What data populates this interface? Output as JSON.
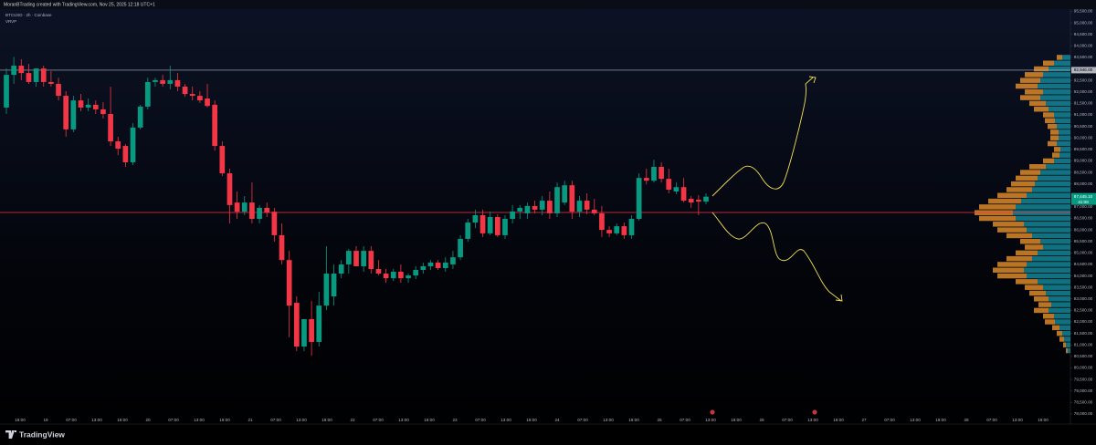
{
  "header": {
    "text": "MoranBTrading created with TradingView.com, Nov 25, 2025 12:18 UTC+1"
  },
  "chart_data": {
    "type": "candlestick",
    "symbol": "BTCUSD · 2h · Coinbase",
    "indicator": "VRVP",
    "up_color": "#089981",
    "down_color": "#f23645",
    "ylim": [
      77560,
      95500
    ],
    "yticks": [
      {
        "value": 95500,
        "label": "95,500.00"
      },
      {
        "value": 95000,
        "label": "95,000.00"
      },
      {
        "value": 94500,
        "label": "94,500.00"
      },
      {
        "value": 94000,
        "label": "94,000.00"
      },
      {
        "value": 93500,
        "label": "93,500.00"
      },
      {
        "value": 93000,
        "label": "93,000.00"
      },
      {
        "value": 92500,
        "label": "92,500.00"
      },
      {
        "value": 92000,
        "label": "92,000.00"
      },
      {
        "value": 91500,
        "label": "91,500.00"
      },
      {
        "value": 91000,
        "label": "91,000.00"
      },
      {
        "value": 90500,
        "label": "90,500.00"
      },
      {
        "value": 90000,
        "label": "90,000.00"
      },
      {
        "value": 89500,
        "label": "89,500.00"
      },
      {
        "value": 89000,
        "label": "89,000.00"
      },
      {
        "value": 88500,
        "label": "88,500.00"
      },
      {
        "value": 88000,
        "label": "88,000.00"
      },
      {
        "value": 87000,
        "label": "87,000.00"
      },
      {
        "value": 86500,
        "label": "86,500.00"
      },
      {
        "value": 86000,
        "label": "86,000.00"
      },
      {
        "value": 85500,
        "label": "85,500.00"
      },
      {
        "value": 85000,
        "label": "85,000.00"
      },
      {
        "value": 84500,
        "label": "84,500.00"
      },
      {
        "value": 84000,
        "label": "84,000.00"
      },
      {
        "value": 83500,
        "label": "83,500.00"
      },
      {
        "value": 83000,
        "label": "83,000.00"
      },
      {
        "value": 82500,
        "label": "82,500.00"
      },
      {
        "value": 82000,
        "label": "82,000.00"
      },
      {
        "value": 81500,
        "label": "81,500.00"
      },
      {
        "value": 81000,
        "label": "81,000.00"
      },
      {
        "value": 80500,
        "label": "80,500.00"
      },
      {
        "value": 80000,
        "label": "80,000.00"
      },
      {
        "value": 79500,
        "label": "79,500.00"
      },
      {
        "value": 79000,
        "label": "79,000.00"
      },
      {
        "value": 78500,
        "label": "78,500.00"
      },
      {
        "value": 78000,
        "label": "78,000.00"
      }
    ],
    "x_labels": [
      "19:00",
      "19",
      "07:00",
      "13:00",
      "19:00",
      "20",
      "07:00",
      "13:00",
      "19:00",
      "21",
      "07:00",
      "13:00",
      "19:00",
      "22",
      "07:00",
      "13:00",
      "19:00",
      "23",
      "07:00",
      "13:00",
      "19:00",
      "24",
      "07:00",
      "13:00",
      "19:00",
      "25",
      "07:00",
      "13:00",
      "19:00",
      "26",
      "07:00",
      "13:00",
      "19:00",
      "27",
      "07:00",
      "13:00",
      "19:00",
      "28",
      "07:00",
      "13:00",
      "19:00"
    ],
    "ohlc": [
      [
        91320,
        93020,
        91040,
        92740
      ],
      [
        92740,
        93520,
        92350,
        93140
      ],
      [
        93140,
        93420,
        92510,
        92820
      ],
      [
        92820,
        93220,
        92350,
        92430
      ],
      [
        92430,
        93020,
        92230,
        93020
      ],
      [
        93020,
        93140,
        92230,
        92430
      ],
      [
        92430,
        92900,
        92230,
        92350
      ],
      [
        92350,
        92620,
        91630,
        91830
      ],
      [
        91830,
        92030,
        90050,
        90370
      ],
      [
        90370,
        91830,
        90250,
        91630
      ],
      [
        91630,
        91910,
        91160,
        91320
      ],
      [
        91320,
        91710,
        91160,
        91440
      ],
      [
        91440,
        91630,
        91040,
        91240
      ],
      [
        91240,
        91550,
        90840,
        91040
      ],
      [
        91040,
        92230,
        89650,
        89850
      ],
      [
        89850,
        90050,
        89250,
        89530
      ],
      [
        89650,
        89730,
        88740,
        88940
      ],
      [
        88940,
        90640,
        88820,
        90450
      ],
      [
        90450,
        91440,
        90370,
        91360
      ],
      [
        91360,
        92620,
        91240,
        92430
      ],
      [
        92430,
        92620,
        92230,
        92510
      ],
      [
        92510,
        92740,
        92230,
        92350
      ],
      [
        92350,
        93140,
        92110,
        92510
      ],
      [
        92510,
        92820,
        92030,
        92230
      ],
      [
        92230,
        92350,
        91790,
        91910
      ],
      [
        91910,
        92230,
        91630,
        91830
      ],
      [
        91830,
        92030,
        91520,
        91630
      ],
      [
        91710,
        92350,
        91320,
        91390
      ],
      [
        91440,
        91630,
        89450,
        89650
      ],
      [
        89650,
        89850,
        88340,
        88460
      ],
      [
        88460,
        88660,
        86280,
        87080
      ],
      [
        87190,
        87670,
        86480,
        86790
      ],
      [
        86790,
        87470,
        86640,
        87190
      ],
      [
        87190,
        88060,
        86280,
        86480
      ],
      [
        86480,
        87080,
        86280,
        86960
      ],
      [
        86960,
        87190,
        86560,
        86760
      ],
      [
        86790,
        86960,
        85490,
        85770
      ],
      [
        85770,
        86280,
        84500,
        84690
      ],
      [
        84690,
        85090,
        81330,
        82710
      ],
      [
        82830,
        83110,
        80730,
        80930
      ],
      [
        80930,
        82120,
        80730,
        82120
      ],
      [
        82120,
        82910,
        80530,
        81130
      ],
      [
        81130,
        83310,
        80930,
        82710
      ],
      [
        82710,
        85290,
        82510,
        84100
      ],
      [
        83110,
        84500,
        82710,
        84100
      ],
      [
        84100,
        84690,
        83900,
        84500
      ],
      [
        84500,
        85170,
        84100,
        85090
      ],
      [
        85090,
        85290,
        84420,
        84420
      ],
      [
        84420,
        85290,
        84180,
        85090
      ],
      [
        85090,
        85290,
        84100,
        84300
      ],
      [
        84300,
        84690,
        84020,
        84100
      ],
      [
        84100,
        84300,
        83700,
        83900
      ],
      [
        83900,
        84300,
        83780,
        84180
      ],
      [
        84180,
        84500,
        83700,
        83900
      ],
      [
        83900,
        84100,
        83700,
        84020
      ],
      [
        84020,
        84420,
        83860,
        84260
      ],
      [
        84260,
        84580,
        84100,
        84420
      ],
      [
        84420,
        84690,
        84260,
        84580
      ],
      [
        84580,
        84690,
        84260,
        84340
      ],
      [
        84340,
        84810,
        84180,
        84580
      ],
      [
        84500,
        85090,
        84300,
        84810
      ],
      [
        84810,
        85770,
        84690,
        85610
      ],
      [
        85610,
        86480,
        85490,
        86320
      ],
      [
        86320,
        86880,
        86080,
        86640
      ],
      [
        86640,
        86880,
        85690,
        85850
      ],
      [
        85850,
        86800,
        85770,
        86560
      ],
      [
        86560,
        86680,
        85690,
        85770
      ],
      [
        85770,
        86640,
        85610,
        86480
      ],
      [
        86480,
        87080,
        86280,
        86800
      ],
      [
        86800,
        87080,
        86480,
        86960
      ],
      [
        86720,
        87190,
        86480,
        87040
      ],
      [
        87040,
        87270,
        86720,
        86880
      ],
      [
        86880,
        87470,
        86640,
        87270
      ],
      [
        87270,
        87670,
        86480,
        86720
      ],
      [
        86720,
        88060,
        86560,
        87860
      ],
      [
        87190,
        88140,
        87080,
        87940
      ],
      [
        87940,
        88140,
        86480,
        86790
      ],
      [
        86790,
        87470,
        86560,
        87270
      ],
      [
        87270,
        87590,
        86680,
        86880
      ],
      [
        86880,
        87350,
        86640,
        86720
      ],
      [
        86720,
        87040,
        85690,
        86000
      ],
      [
        86000,
        86160,
        85690,
        85850
      ],
      [
        85850,
        86280,
        85770,
        86160
      ],
      [
        86160,
        86320,
        85610,
        85770
      ],
      [
        85770,
        86640,
        85610,
        86480
      ],
      [
        86480,
        88460,
        86400,
        88260
      ],
      [
        88260,
        88660,
        87980,
        88140
      ],
      [
        88140,
        89050,
        88060,
        88740
      ],
      [
        88740,
        88940,
        88060,
        88220
      ],
      [
        88220,
        88660,
        87590,
        87750
      ],
      [
        87670,
        88060,
        87550,
        87860
      ],
      [
        87860,
        88260,
        87190,
        87270
      ],
      [
        87350,
        87470,
        86960,
        87190
      ],
      [
        87310,
        87510,
        86640,
        87230
      ],
      [
        87230,
        87590,
        87110,
        87445.1
      ]
    ],
    "last_price_label": "87,445.10",
    "countdown": "41:08",
    "hlines": [
      {
        "value": 92946,
        "label": "92,946.00",
        "color": "#b2b5be"
      },
      {
        "value": 86757,
        "color": "#f23645"
      }
    ],
    "volume_profile": {
      "up_color": "#1596a8",
      "down_color": "#e8912a",
      "prices": [
        80750,
        81000,
        81250,
        81500,
        81750,
        82000,
        82250,
        82500,
        82750,
        83000,
        83250,
        83500,
        83750,
        84000,
        84250,
        84500,
        84750,
        85000,
        85250,
        85500,
        85750,
        86000,
        86250,
        86500,
        86750,
        87000,
        87250,
        87500,
        87750,
        88000,
        88250,
        88500,
        88750,
        89000,
        89250,
        89500,
        89750,
        90000,
        90250,
        90500,
        90750,
        91000,
        91250,
        91500,
        91750,
        92000,
        92250,
        92500,
        92750,
        93000,
        93250,
        93500
      ],
      "up": [
        3,
        5,
        7,
        9,
        12,
        17,
        18,
        24,
        21,
        24,
        27,
        30,
        36,
        48,
        51,
        48,
        42,
        36,
        30,
        33,
        42,
        48,
        51,
        60,
        63,
        60,
        54,
        48,
        42,
        39,
        36,
        33,
        27,
        18,
        12,
        11,
        15,
        13,
        13,
        15,
        17,
        18,
        24,
        27,
        33,
        30,
        36,
        33,
        30,
        24,
        18,
        9
      ],
      "down": [
        2,
        3,
        5,
        6,
        8,
        11,
        12,
        16,
        14,
        16,
        18,
        20,
        24,
        32,
        34,
        32,
        28,
        24,
        20,
        22,
        28,
        32,
        34,
        40,
        42,
        40,
        36,
        32,
        28,
        26,
        24,
        22,
        18,
        12,
        8,
        7,
        10,
        9,
        9,
        10,
        11,
        12,
        16,
        18,
        22,
        20,
        24,
        22,
        20,
        16,
        12,
        6
      ]
    }
  }
}
